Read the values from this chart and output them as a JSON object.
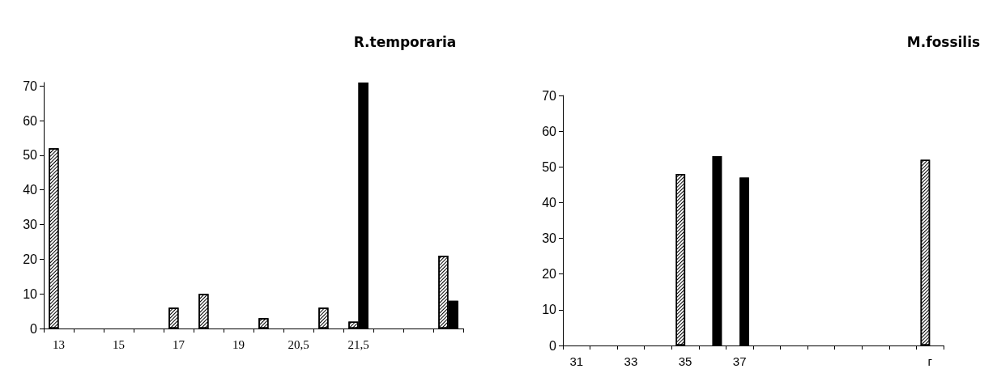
{
  "chart_data": [
    {
      "type": "bar",
      "title": "R.temporaria",
      "categories": [
        "13",
        null,
        "15",
        null,
        "17",
        null,
        "19",
        null,
        "20,5",
        null,
        "21,5",
        null,
        null,
        null
      ],
      "series": [
        {
          "color": "#ffffff",
          "values": [
            52,
            null,
            null,
            null,
            6,
            10,
            null,
            3,
            null,
            6,
            2,
            null,
            null,
            21
          ]
        },
        {
          "color": "#000000",
          "values": [
            null,
            null,
            null,
            null,
            null,
            null,
            null,
            null,
            null,
            null,
            71,
            null,
            null,
            8
          ]
        }
      ],
      "ylim": [
        0,
        71
      ],
      "yticks": [
        0,
        10,
        20,
        30,
        40,
        50,
        60,
        70
      ]
    },
    {
      "type": "bar",
      "title": "M.fossilis",
      "categories": [
        "31",
        null,
        "33",
        null,
        "35",
        null,
        "37",
        null,
        null,
        null,
        null,
        null,
        null,
        "г"
      ],
      "series": [
        {
          "color": "#ffffff",
          "values": [
            null,
            null,
            null,
            null,
            48,
            null,
            null,
            null,
            null,
            null,
            null,
            null,
            null,
            52
          ]
        },
        {
          "color": "#000000",
          "values": [
            null,
            null,
            null,
            null,
            null,
            53,
            47,
            null,
            null,
            null,
            null,
            null,
            null,
            null
          ]
        }
      ],
      "ylim": [
        0,
        70
      ],
      "yticks": [
        0,
        10,
        20,
        30,
        40,
        50,
        60,
        70
      ]
    }
  ]
}
